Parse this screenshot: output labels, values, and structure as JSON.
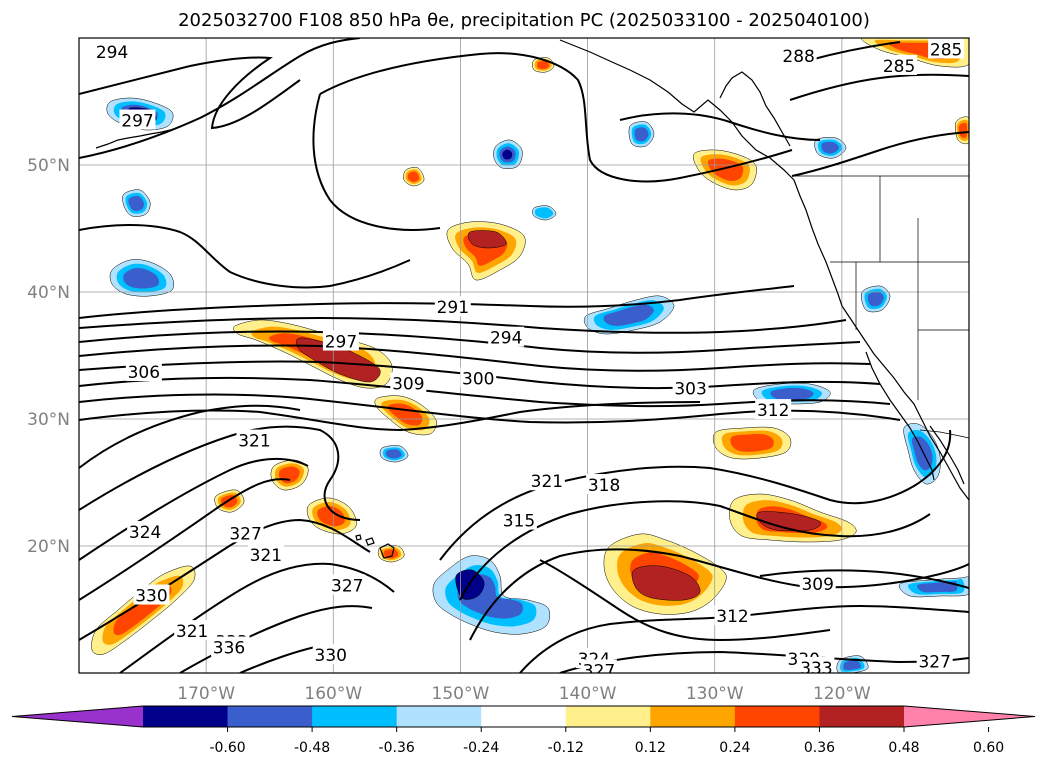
{
  "figure": {
    "title": "2025032700 F108 850 hPa θe, precipitation PC (2025033100 - 2025040100)"
  },
  "map": {
    "lat_labels": [
      "50°N",
      "40°N",
      "30°N",
      "20°N"
    ],
    "lon_labels": [
      "170°W",
      "160°W",
      "150°W",
      "140°W",
      "130°W",
      "120°W"
    ],
    "lat_values": [
      50,
      40,
      30,
      20
    ],
    "lon_values": [
      -170,
      -160,
      -150,
      -140,
      -130,
      -120
    ],
    "extent": {
      "lon_min": -180,
      "lon_max": -110,
      "lat_min": 10,
      "lat_max": 60
    },
    "contour_labels": [
      {
        "text": "294",
        "lon": -177.4,
        "lat": 58.9
      },
      {
        "text": "297",
        "lon": -175.4,
        "lat": 53.5
      },
      {
        "text": "291",
        "lon": -150.6,
        "lat": 38.8
      },
      {
        "text": "294",
        "lon": -146.4,
        "lat": 36.4
      },
      {
        "text": "297",
        "lon": -159.4,
        "lat": 36.1
      },
      {
        "text": "306",
        "lon": -174.9,
        "lat": 33.7
      },
      {
        "text": "309",
        "lon": -154.1,
        "lat": 32.8
      },
      {
        "text": "300",
        "lon": -148.6,
        "lat": 33.2
      },
      {
        "text": "303",
        "lon": -131.9,
        "lat": 32.4
      },
      {
        "text": "312",
        "lon": -125.4,
        "lat": 30.7
      },
      {
        "text": "321",
        "lon": -166.2,
        "lat": 28.3
      },
      {
        "text": "321",
        "lon": -143.2,
        "lat": 25.1
      },
      {
        "text": "318",
        "lon": -138.7,
        "lat": 24.8
      },
      {
        "text": "315",
        "lon": -145.4,
        "lat": 22.0
      },
      {
        "text": "324",
        "lon": -174.8,
        "lat": 21.1
      },
      {
        "text": "327",
        "lon": -166.9,
        "lat": 21.0
      },
      {
        "text": "321",
        "lon": -165.3,
        "lat": 19.3
      },
      {
        "text": "330",
        "lon": -174.3,
        "lat": 16.1
      },
      {
        "text": "327",
        "lon": -158.9,
        "lat": 16.9
      },
      {
        "text": "321",
        "lon": -171.1,
        "lat": 13.3
      },
      {
        "text": "333",
        "lon": -168.0,
        "lat": 12.5
      },
      {
        "text": "336",
        "lon": -168.2,
        "lat": 12.0
      },
      {
        "text": "330",
        "lon": -160.2,
        "lat": 11.4
      },
      {
        "text": "312",
        "lon": -128.6,
        "lat": 14.5
      },
      {
        "text": "309",
        "lon": -121.9,
        "lat": 17.0
      },
      {
        "text": "324",
        "lon": -139.5,
        "lat": 11.1
      },
      {
        "text": "327",
        "lon": -139.1,
        "lat": 10.2
      },
      {
        "text": "330",
        "lon": -123.0,
        "lat": 11.1
      },
      {
        "text": "333",
        "lon": -122.0,
        "lat": 10.4
      },
      {
        "text": "327",
        "lon": -112.7,
        "lat": 10.9
      },
      {
        "text": "288",
        "lon": -123.4,
        "lat": 58.6
      },
      {
        "text": "285",
        "lon": -115.5,
        "lat": 57.8
      },
      {
        "text": "285",
        "lon": -111.8,
        "lat": 59.1
      }
    ]
  },
  "colorbar": {
    "tick_labels": [
      "-0.60",
      "-0.48",
      "-0.36",
      "-0.24",
      "-0.12",
      "0.12",
      "0.24",
      "0.36",
      "0.48",
      "0.60"
    ],
    "bins": [
      {
        "color": "#9932cc"
      },
      {
        "color": "#00008b"
      },
      {
        "color": "#3a5fcd"
      },
      {
        "color": "#00bfff"
      },
      {
        "color": "#b0e2ff"
      },
      {
        "color": "#ffffff"
      },
      {
        "color": "#fff08c"
      },
      {
        "color": "#ffa500"
      },
      {
        "color": "#ff4500"
      },
      {
        "color": "#b22222"
      },
      {
        "color": "#ff82ab"
      }
    ]
  },
  "precip": {
    "positive_colors": [
      "#fff08c",
      "#ffa500",
      "#ff4500",
      "#b22222",
      "#ff82ab"
    ],
    "negative_colors": [
      "#b0e2ff",
      "#00bfff",
      "#3a5fcd",
      "#00008b",
      "#9932cc"
    ]
  }
}
